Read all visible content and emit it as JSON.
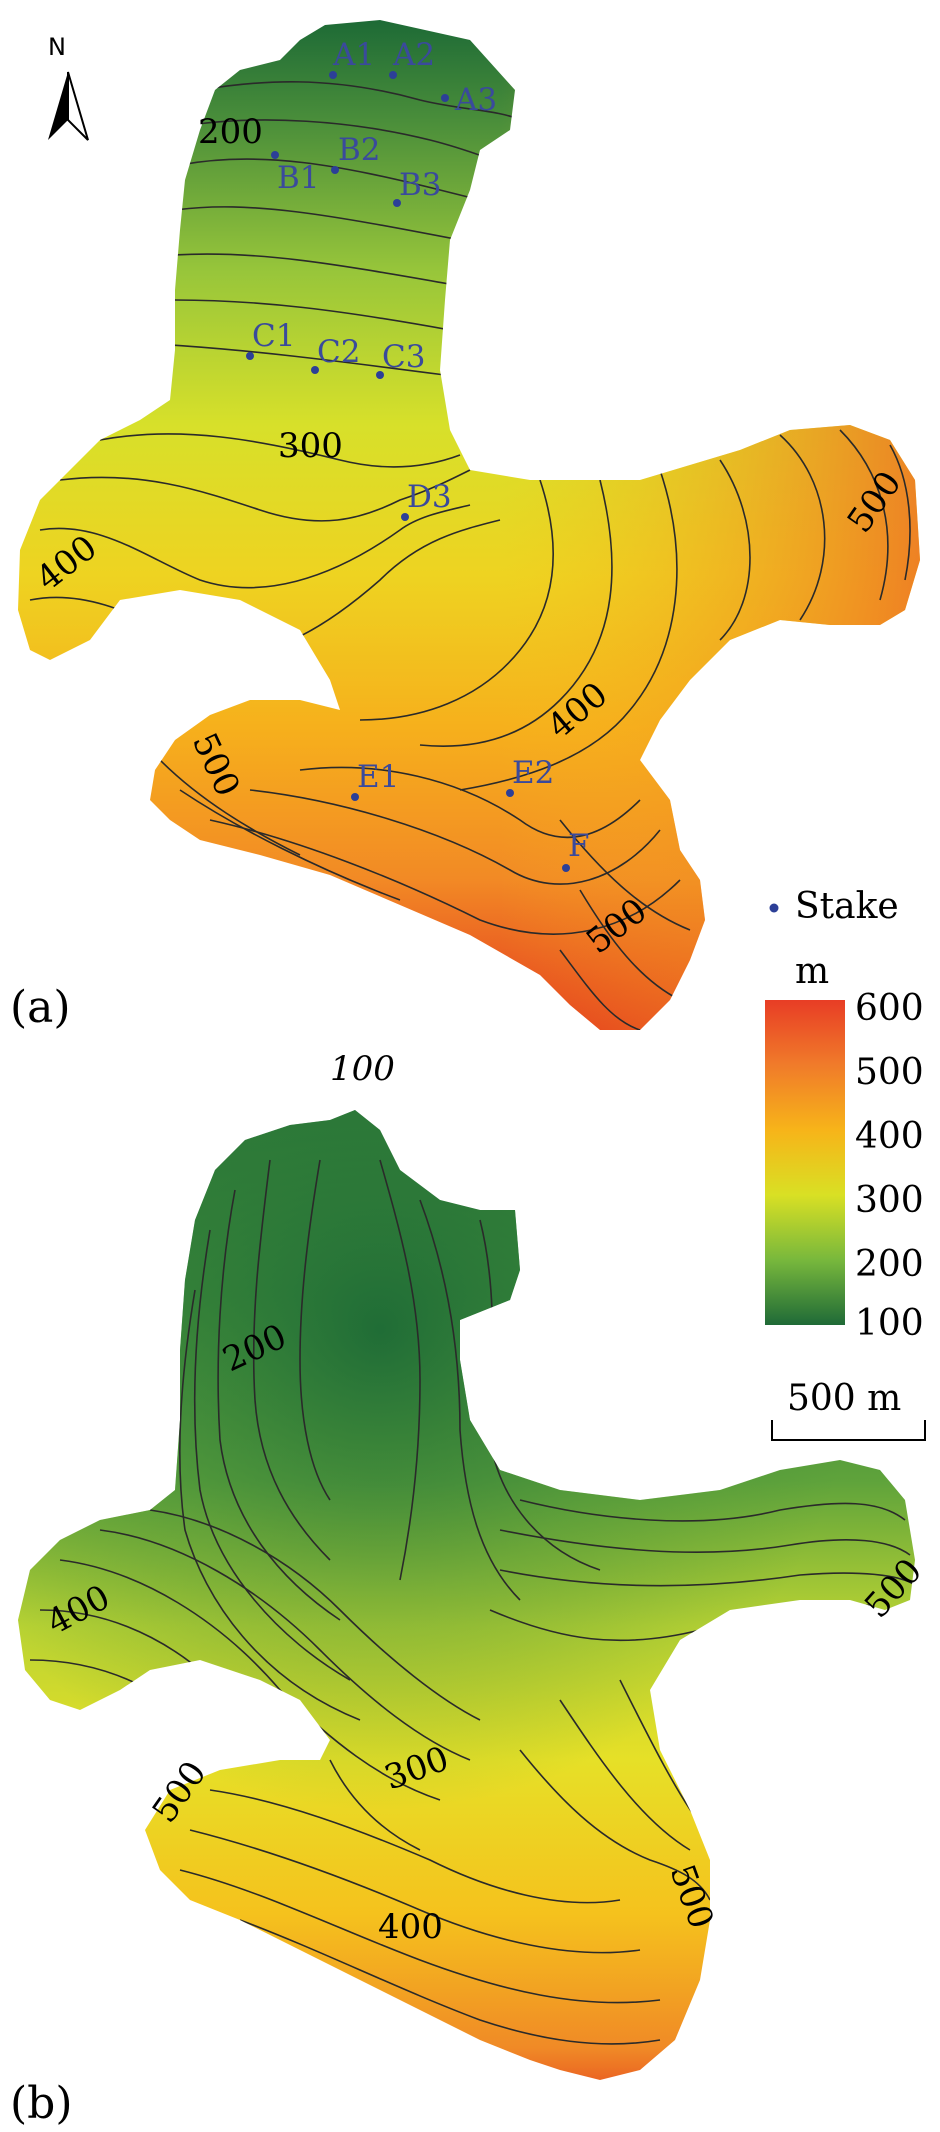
{
  "north_label": "N",
  "panels": [
    {
      "label": "(a)",
      "contour_labels": [
        "200",
        "300",
        "400",
        "400",
        "500",
        "500",
        "500"
      ],
      "stakes": [
        "A1",
        "A2",
        "A3",
        "B1",
        "B2",
        "B3",
        "C1",
        "C2",
        "C3",
        "D3",
        "E1",
        "E2",
        "F"
      ]
    },
    {
      "label": "(b)",
      "contour_labels": [
        "100",
        "200",
        "300",
        "400",
        "400",
        "500",
        "500",
        "500"
      ]
    }
  ],
  "legend": {
    "stake_label": "Stake",
    "unit": "m",
    "ticks": [
      "600",
      "500",
      "400",
      "300",
      "200",
      "100"
    ],
    "colors": [
      "#e83d25",
      "#f07b2a",
      "#f7b419",
      "#d9e024",
      "#78b83c",
      "#1f6a37"
    ],
    "scale_label": "500 m"
  }
}
